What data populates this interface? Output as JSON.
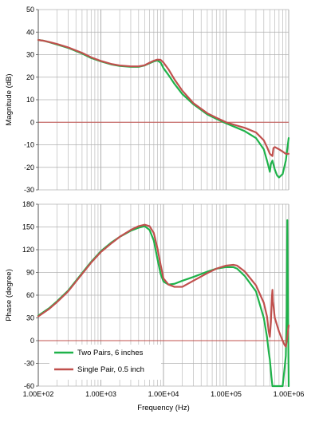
{
  "chart_data": [
    {
      "type": "line",
      "ylabel": "Magnitude (dB)",
      "xlabel": "",
      "x_scale": "log",
      "xlim": [
        100,
        1000000
      ],
      "ylim": [
        -30,
        50
      ],
      "y_ticks": [
        "50",
        "40",
        "30",
        "20",
        "10",
        "0",
        "-10",
        "-20",
        "-30"
      ],
      "grid": true,
      "series": [
        {
          "name": "Two Pairs, 6 inches",
          "color": "#1fb24a",
          "points": [
            [
              100,
              36.5
            ],
            [
              120,
              36.2
            ],
            [
              150,
              35.5
            ],
            [
              200,
              34.5
            ],
            [
              300,
              33
            ],
            [
              500,
              30.5
            ],
            [
              700,
              28.5
            ],
            [
              1000,
              27
            ],
            [
              1500,
              25.6
            ],
            [
              2000,
              25
            ],
            [
              3000,
              24.6
            ],
            [
              4000,
              24.6
            ],
            [
              5000,
              25.2
            ],
            [
              6000,
              26.2
            ],
            [
              7000,
              27
            ],
            [
              8000,
              27.4
            ],
            [
              9000,
              26.5
            ],
            [
              10000,
              24
            ],
            [
              12000,
              21
            ],
            [
              15000,
              17
            ],
            [
              20000,
              12.5
            ],
            [
              30000,
              8
            ],
            [
              50000,
              3.5
            ],
            [
              70000,
              1.5
            ],
            [
              100000,
              -0.5
            ],
            [
              150000,
              -2.5
            ],
            [
              200000,
              -4
            ],
            [
              300000,
              -7
            ],
            [
              400000,
              -12
            ],
            [
              450000,
              -17
            ],
            [
              480000,
              -20
            ],
            [
              500000,
              -22
            ],
            [
              520000,
              -18.5
            ],
            [
              550000,
              -17
            ],
            [
              600000,
              -21
            ],
            [
              650000,
              -23.5
            ],
            [
              700000,
              -24.5
            ],
            [
              800000,
              -23
            ],
            [
              900000,
              -17
            ],
            [
              1000000,
              -7
            ]
          ]
        },
        {
          "name": "Single Pair, 0.5 inch",
          "color": "#c0504d",
          "points": [
            [
              100,
              36.5
            ],
            [
              120,
              36.2
            ],
            [
              150,
              35.6
            ],
            [
              200,
              34.7
            ],
            [
              300,
              33.2
            ],
            [
              500,
              30.8
            ],
            [
              700,
              28.8
            ],
            [
              1000,
              27.2
            ],
            [
              1500,
              25.8
            ],
            [
              2000,
              25.2
            ],
            [
              3000,
              24.8
            ],
            [
              4000,
              24.8
            ],
            [
              5000,
              25.3
            ],
            [
              6000,
              26.4
            ],
            [
              7000,
              27.3
            ],
            [
              8000,
              27.8
            ],
            [
              9000,
              27.7
            ],
            [
              10000,
              26.5
            ],
            [
              12000,
              23.5
            ],
            [
              15000,
              19
            ],
            [
              20000,
              14
            ],
            [
              30000,
              8.5
            ],
            [
              50000,
              4
            ],
            [
              70000,
              2
            ],
            [
              100000,
              0
            ],
            [
              150000,
              -1.5
            ],
            [
              200000,
              -2.5
            ],
            [
              300000,
              -4.5
            ],
            [
              400000,
              -8
            ],
            [
              450000,
              -11
            ],
            [
              500000,
              -14
            ],
            [
              550000,
              -15
            ],
            [
              570000,
              -11.5
            ],
            [
              600000,
              -11
            ],
            [
              700000,
              -12
            ],
            [
              800000,
              -13
            ],
            [
              900000,
              -14
            ],
            [
              1000000,
              -14
            ]
          ]
        }
      ]
    },
    {
      "type": "line",
      "ylabel": "Phase (degree)",
      "xlabel": "Frequency (Hz)",
      "x_scale": "log",
      "xlim": [
        100,
        1000000
      ],
      "ylim": [
        -60,
        180
      ],
      "y_ticks": [
        "180",
        "150",
        "120",
        "90",
        "60",
        "30",
        "0",
        "-30",
        "-60"
      ],
      "x_ticks": [
        "1.00E+02",
        "1.00E+03",
        "1.00E+04",
        "1.00E+05",
        "1.00E+06"
      ],
      "grid": true,
      "legend": "bottom-left",
      "series": [
        {
          "name": "Two Pairs, 6 inches",
          "color": "#1fb24a",
          "points": [
            [
              100,
              33
            ],
            [
              150,
              43
            ],
            [
              200,
              52
            ],
            [
              300,
              66
            ],
            [
              500,
              89
            ],
            [
              700,
              104
            ],
            [
              1000,
              118
            ],
            [
              1500,
              130
            ],
            [
              2000,
              137
            ],
            [
              3000,
              145
            ],
            [
              4000,
              149
            ],
            [
              5000,
              151
            ],
            [
              6000,
              146
            ],
            [
              7000,
              132
            ],
            [
              8000,
              108
            ],
            [
              9000,
              88
            ],
            [
              10000,
              78
            ],
            [
              12000,
              74
            ],
            [
              15000,
              75
            ],
            [
              20000,
              79
            ],
            [
              30000,
              84
            ],
            [
              50000,
              91
            ],
            [
              70000,
              95
            ],
            [
              100000,
              97
            ],
            [
              130000,
              97
            ],
            [
              150000,
              95
            ],
            [
              200000,
              85
            ],
            [
              300000,
              65
            ],
            [
              400000,
              30
            ],
            [
              450000,
              5
            ],
            [
              480000,
              -15
            ],
            [
              500000,
              -25
            ],
            [
              530000,
              -48
            ],
            [
              550000,
              -60
            ],
            [
              700000,
              -60
            ],
            [
              800000,
              -60
            ],
            [
              850000,
              -40
            ],
            [
              900000,
              -20
            ],
            [
              930000,
              40
            ],
            [
              950000,
              159
            ],
            [
              970000,
              60
            ],
            [
              1000000,
              -60
            ]
          ]
        },
        {
          "name": "Single Pair, 0.5 inch",
          "color": "#c0504d",
          "points": [
            [
              100,
              32
            ],
            [
              150,
              42
            ],
            [
              200,
              51
            ],
            [
              300,
              65
            ],
            [
              500,
              88
            ],
            [
              700,
              103
            ],
            [
              1000,
              117
            ],
            [
              1500,
              129
            ],
            [
              2000,
              137
            ],
            [
              3000,
              146
            ],
            [
              4000,
              151
            ],
            [
              5000,
              153
            ],
            [
              6000,
              151
            ],
            [
              7000,
              142
            ],
            [
              8000,
              122
            ],
            [
              9000,
              100
            ],
            [
              10000,
              82
            ],
            [
              12000,
              74
            ],
            [
              15000,
              71
            ],
            [
              20000,
              71
            ],
            [
              30000,
              79
            ],
            [
              50000,
              89
            ],
            [
              70000,
              95
            ],
            [
              100000,
              99
            ],
            [
              130000,
              100
            ],
            [
              150000,
              99
            ],
            [
              200000,
              91
            ],
            [
              300000,
              73
            ],
            [
              400000,
              50
            ],
            [
              450000,
              32
            ],
            [
              480000,
              12
            ],
            [
              500000,
              5
            ],
            [
              520000,
              25
            ],
            [
              540000,
              58
            ],
            [
              550000,
              67
            ],
            [
              560000,
              52
            ],
            [
              600000,
              30
            ],
            [
              700000,
              12
            ],
            [
              800000,
              0
            ],
            [
              850000,
              -5
            ],
            [
              900000,
              -8
            ],
            [
              950000,
              5
            ],
            [
              1000000,
              20
            ]
          ]
        }
      ]
    }
  ]
}
